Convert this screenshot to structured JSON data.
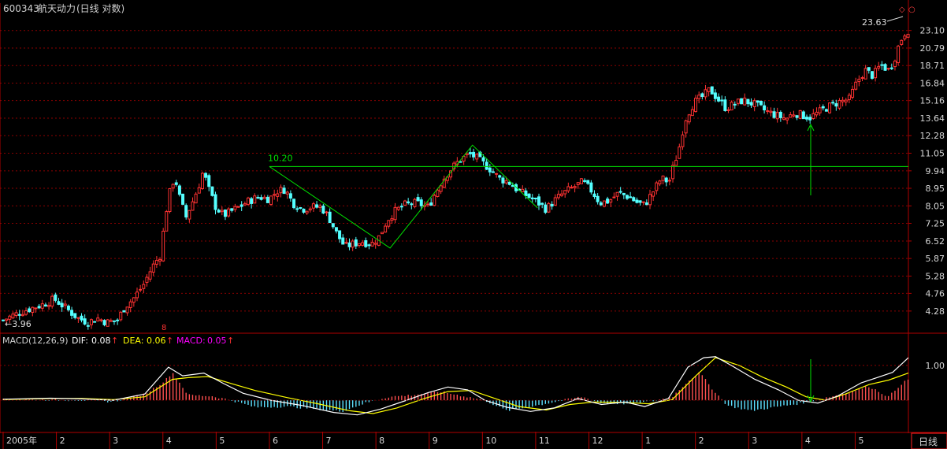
{
  "header": {
    "code": "600343",
    "name": "航天动力",
    "mode": "(日线 对数)"
  },
  "price_axis": [
    "23.10",
    "20.79",
    "18.71",
    "16.84",
    "15.16",
    "13.64",
    "12.28",
    "11.05",
    "9.94",
    "8.95",
    "8.05",
    "7.25",
    "6.52",
    "5.87",
    "5.28",
    "4.76",
    "4.28"
  ],
  "macd_axis": [
    "1.00"
  ],
  "macd_legend": {
    "name": "MACD(12,26,9)",
    "dif_label": "DIF:",
    "dif_value": "0.08",
    "dea_label": "DEA:",
    "dea_value": "0.06",
    "macd_label": "MACD:",
    "macd_value": "0.05",
    "arrow": "↑"
  },
  "x_axis": [
    "2005年",
    "2",
    "3",
    "4",
    "5",
    "6",
    "7",
    "8",
    "9",
    "10",
    "11",
    "12",
    "1",
    "2",
    "3",
    "4",
    "5"
  ],
  "period_button": "日线",
  "annotations": {
    "low_label": "←3.96",
    "high_label": "23.63",
    "neckline_label": "10.20",
    "marker_symbol": "◇",
    "up_marker": "8"
  },
  "colors": {
    "background": "#000000",
    "up": "#ff3232",
    "down": "#54ffff",
    "grid": "#8b0000",
    "pattern": "#00e000",
    "dif": "#ffffff",
    "dea": "#ffff00",
    "macd": "#ff00ff"
  },
  "chart_data": [
    {
      "type": "candlestick",
      "scale": "log",
      "ylim": [
        3.8,
        25.0
      ],
      "x": [
        "2005-01",
        "2005-02",
        "2005-03",
        "2005-04",
        "2005-05",
        "2005-06",
        "2005-07",
        "2005-08",
        "2005-09",
        "2005-10",
        "2005-11",
        "2005-12",
        "2006-01",
        "2006-02",
        "2006-03",
        "2006-04",
        "2006-05"
      ],
      "close_path": [
        [
          0,
          4.05
        ],
        [
          10,
          4.15
        ],
        [
          22,
          4.25
        ],
        [
          35,
          4.35
        ],
        [
          50,
          4.45
        ],
        [
          65,
          4.6
        ],
        [
          80,
          4.35
        ],
        [
          95,
          4.1
        ],
        [
          108,
          4.0
        ],
        [
          120,
          4.1
        ],
        [
          132,
          4.0
        ],
        [
          145,
          4.05
        ],
        [
          155,
          4.4
        ],
        [
          165,
          4.6
        ],
        [
          178,
          5.0
        ],
        [
          190,
          5.6
        ],
        [
          200,
          6.0
        ],
        [
          207,
          7.8
        ],
        [
          212,
          8.8
        ],
        [
          218,
          9.6
        ],
        [
          224,
          8.5
        ],
        [
          232,
          7.5
        ],
        [
          240,
          8.2
        ],
        [
          248,
          9.0
        ],
        [
          254,
          9.9
        ],
        [
          262,
          8.8
        ],
        [
          270,
          8.0
        ],
        [
          280,
          7.6
        ],
        [
          290,
          7.8
        ],
        [
          300,
          8.0
        ],
        [
          312,
          8.3
        ],
        [
          325,
          8.5
        ],
        [
          338,
          8.4
        ],
        [
          348,
          8.8
        ],
        [
          358,
          8.9
        ],
        [
          368,
          8.2
        ],
        [
          380,
          7.9
        ],
        [
          392,
          8.0
        ],
        [
          404,
          8.0
        ],
        [
          414,
          7.5
        ],
        [
          424,
          6.8
        ],
        [
          434,
          6.3
        ],
        [
          444,
          6.4
        ],
        [
          456,
          6.5
        ],
        [
          468,
          6.4
        ],
        [
          478,
          6.7
        ],
        [
          488,
          7.4
        ],
        [
          498,
          7.8
        ],
        [
          510,
          8.1
        ],
        [
          525,
          8.2
        ],
        [
          540,
          8.0
        ],
        [
          548,
          8.6
        ],
        [
          558,
          9.4
        ],
        [
          568,
          10.0
        ],
        [
          580,
          10.6
        ],
        [
          592,
          11.0
        ],
        [
          600,
          10.8
        ],
        [
          610,
          10.4
        ],
        [
          620,
          10.0
        ],
        [
          630,
          9.5
        ],
        [
          642,
          9.3
        ],
        [
          655,
          8.8
        ],
        [
          668,
          8.5
        ],
        [
          680,
          8.2
        ],
        [
          690,
          7.9
        ],
        [
          700,
          8.3
        ],
        [
          712,
          8.7
        ],
        [
          724,
          9.0
        ],
        [
          736,
          9.3
        ],
        [
          748,
          8.8
        ],
        [
          758,
          8.2
        ],
        [
          770,
          8.3
        ],
        [
          782,
          8.7
        ],
        [
          795,
          8.5
        ],
        [
          806,
          8.2
        ],
        [
          815,
          8.1
        ],
        [
          826,
          8.8
        ],
        [
          836,
          9.5
        ],
        [
          846,
          9.3
        ],
        [
          852,
          10.3
        ],
        [
          858,
          11.2
        ],
        [
          863,
          12.6
        ],
        [
          868,
          13.8
        ],
        [
          878,
          15.0
        ],
        [
          888,
          15.5
        ],
        [
          898,
          16.2
        ],
        [
          908,
          15.3
        ],
        [
          918,
          14.5
        ],
        [
          928,
          14.8
        ],
        [
          940,
          15.2
        ],
        [
          955,
          14.8
        ],
        [
          970,
          14.2
        ],
        [
          985,
          13.8
        ],
        [
          995,
          13.6
        ],
        [
          1005,
          14.1
        ],
        [
          1015,
          13.9
        ],
        [
          1025,
          13.7
        ],
        [
          1035,
          14.1
        ],
        [
          1045,
          14.5
        ],
        [
          1060,
          15.0
        ],
        [
          1075,
          15.3
        ],
        [
          1085,
          17.0
        ],
        [
          1095,
          18.2
        ],
        [
          1105,
          17.6
        ],
        [
          1115,
          18.8
        ],
        [
          1125,
          18.2
        ],
        [
          1132,
          19.4
        ],
        [
          1138,
          21.2
        ],
        [
          1144,
          22.6
        ],
        [
          1150,
          23.2
        ]
      ],
      "neckline": 10.2,
      "pattern_points": [
        [
          "2005-06",
          10.2
        ],
        [
          "2005-08",
          6.25
        ],
        [
          "2005-10",
          11.6
        ],
        [
          "2005-11",
          7.95
        ]
      ],
      "extremes": {
        "low": 3.96,
        "high": 23.63
      }
    },
    {
      "type": "line",
      "title": "MACD(12,26,9)",
      "ylim": [
        -0.9,
        1.9
      ],
      "series": [
        {
          "name": "DIF",
          "values": [
            [
              0,
              0.03
            ],
            [
              60,
              0.06
            ],
            [
              100,
              0.04
            ],
            [
              140,
              0.0
            ],
            [
              180,
              0.18
            ],
            [
              210,
              0.95
            ],
            [
              228,
              0.7
            ],
            [
              255,
              0.78
            ],
            [
              280,
              0.48
            ],
            [
              305,
              0.2
            ],
            [
              340,
              0.0
            ],
            [
              380,
              -0.15
            ],
            [
              420,
              -0.35
            ],
            [
              450,
              -0.42
            ],
            [
              480,
              -0.25
            ],
            [
              510,
              -0.02
            ],
            [
              540,
              0.22
            ],
            [
              565,
              0.38
            ],
            [
              590,
              0.3
            ],
            [
              612,
              0.0
            ],
            [
              640,
              -0.2
            ],
            [
              670,
              -0.32
            ],
            [
              700,
              -0.22
            ],
            [
              730,
              0.05
            ],
            [
              760,
              -0.12
            ],
            [
              790,
              -0.05
            ],
            [
              815,
              -0.18
            ],
            [
              845,
              0.05
            ],
            [
              870,
              0.95
            ],
            [
              890,
              1.22
            ],
            [
              905,
              1.25
            ],
            [
              925,
              1.0
            ],
            [
              955,
              0.6
            ],
            [
              985,
              0.3
            ],
            [
              1010,
              0.0
            ],
            [
              1035,
              -0.08
            ],
            [
              1060,
              0.12
            ],
            [
              1090,
              0.5
            ],
            [
              1110,
              0.65
            ],
            [
              1130,
              0.8
            ],
            [
              1150,
              1.22
            ]
          ]
        },
        {
          "name": "DEA",
          "values": [
            [
              0,
              0.02
            ],
            [
              60,
              0.05
            ],
            [
              100,
              0.05
            ],
            [
              140,
              0.02
            ],
            [
              180,
              0.1
            ],
            [
              215,
              0.6
            ],
            [
              235,
              0.65
            ],
            [
              260,
              0.68
            ],
            [
              290,
              0.48
            ],
            [
              320,
              0.28
            ],
            [
              360,
              0.08
            ],
            [
              400,
              -0.1
            ],
            [
              440,
              -0.3
            ],
            [
              470,
              -0.38
            ],
            [
              500,
              -0.22
            ],
            [
              535,
              0.05
            ],
            [
              565,
              0.25
            ],
            [
              595,
              0.28
            ],
            [
              625,
              0.05
            ],
            [
              655,
              -0.18
            ],
            [
              690,
              -0.28
            ],
            [
              720,
              -0.12
            ],
            [
              750,
              -0.05
            ],
            [
              790,
              -0.06
            ],
            [
              820,
              -0.1
            ],
            [
              850,
              0.02
            ],
            [
              880,
              0.7
            ],
            [
              905,
              1.22
            ],
            [
              935,
              1.0
            ],
            [
              965,
              0.66
            ],
            [
              995,
              0.38
            ],
            [
              1020,
              0.1
            ],
            [
              1045,
              0.0
            ],
            [
              1070,
              0.18
            ],
            [
              1100,
              0.45
            ],
            [
              1125,
              0.58
            ],
            [
              1150,
              0.78
            ]
          ]
        },
        {
          "name": "MACD",
          "values": [
            [
              0,
              0.02
            ],
            [
              100,
              0.0
            ],
            [
              140,
              -0.04
            ],
            [
              180,
              0.18
            ],
            [
              205,
              0.55
            ],
            [
              215,
              0.8
            ],
            [
              235,
              0.15
            ],
            [
              265,
              0.12
            ],
            [
              290,
              0.0
            ],
            [
              320,
              -0.2
            ],
            [
              360,
              -0.18
            ],
            [
              400,
              -0.25
            ],
            [
              430,
              -0.32
            ],
            [
              460,
              -0.08
            ],
            [
              490,
              0.1
            ],
            [
              520,
              0.15
            ],
            [
              555,
              0.25
            ],
            [
              585,
              0.12
            ],
            [
              612,
              0.0
            ],
            [
              640,
              -0.3
            ],
            [
              670,
              -0.18
            ],
            [
              700,
              -0.05
            ],
            [
              735,
              0.1
            ],
            [
              760,
              -0.08
            ],
            [
              800,
              -0.1
            ],
            [
              830,
              0.0
            ],
            [
              850,
              0.1
            ],
            [
              870,
              0.55
            ],
            [
              885,
              0.8
            ],
            [
              900,
              0.35
            ],
            [
              920,
              -0.15
            ],
            [
              950,
              -0.3
            ],
            [
              980,
              -0.2
            ],
            [
              1010,
              -0.1
            ],
            [
              1040,
              0.05
            ],
            [
              1070,
              0.2
            ],
            [
              1100,
              0.4
            ],
            [
              1125,
              0.1
            ],
            [
              1140,
              0.45
            ],
            [
              1150,
              0.6
            ]
          ]
        }
      ],
      "values_shown": {
        "DIF": 0.08,
        "DEA": 0.06,
        "MACD": 0.05
      }
    }
  ]
}
